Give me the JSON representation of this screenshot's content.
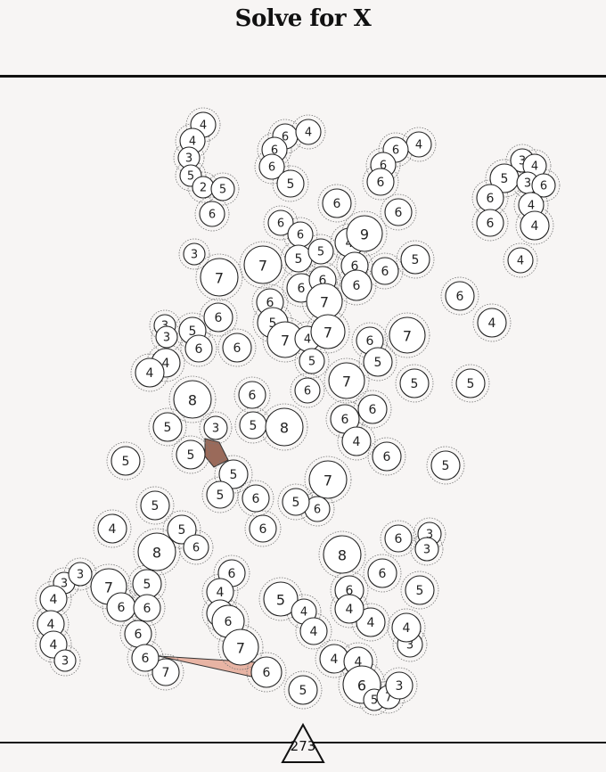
{
  "game": {
    "title": "Solve for X",
    "score": "273"
  },
  "colors": {
    "background": "#f7f5f4",
    "node_fill": "#ffffff",
    "node_stroke": "#222222",
    "halo_stroke": "#777777",
    "edge_fill_pink": "#e8b4a4",
    "edge_fill_brown": "#9a6a5a"
  },
  "nodes": [
    {
      "n": 4
    },
    {
      "n": 4
    },
    {
      "n": 3
    },
    {
      "n": 5
    },
    {
      "n": 2
    },
    {
      "n": 5
    },
    {
      "n": 6
    },
    {
      "n": 6
    },
    {
      "n": 4
    },
    {
      "n": 6
    },
    {
      "n": 6
    },
    {
      "n": 5
    },
    {
      "n": 6
    },
    {
      "n": 6
    },
    {
      "n": 6
    },
    {
      "n": 4
    },
    {
      "n": 6
    },
    {
      "n": 6
    },
    {
      "n": 6
    },
    {
      "n": 6
    },
    {
      "n": 3
    },
    {
      "n": 4
    },
    {
      "n": 5
    },
    {
      "n": 3
    },
    {
      "n": 6
    },
    {
      "n": 6
    },
    {
      "n": 4
    },
    {
      "n": 4
    },
    {
      "n": 6
    },
    {
      "n": 4
    },
    {
      "n": 3
    },
    {
      "n": 7
    },
    {
      "n": 7
    },
    {
      "n": 5
    },
    {
      "n": 5
    },
    {
      "n": 4
    },
    {
      "n": 9
    },
    {
      "n": 6
    },
    {
      "n": 6
    },
    {
      "n": 5
    },
    {
      "n": 6
    },
    {
      "n": 6
    },
    {
      "n": 6
    },
    {
      "n": 6
    },
    {
      "n": 7
    },
    {
      "n": 5
    },
    {
      "n": 7
    },
    {
      "n": 4
    },
    {
      "n": 7
    },
    {
      "n": 5
    },
    {
      "n": 6
    },
    {
      "n": 7
    },
    {
      "n": 6
    },
    {
      "n": 5
    },
    {
      "n": 6
    },
    {
      "n": 4
    },
    {
      "n": 3
    },
    {
      "n": 3
    },
    {
      "n": 5
    },
    {
      "n": 6
    },
    {
      "n": 6
    },
    {
      "n": 4
    },
    {
      "n": 4
    },
    {
      "n": 8
    },
    {
      "n": 6
    },
    {
      "n": 5
    },
    {
      "n": 5
    },
    {
      "n": 3
    },
    {
      "n": 5
    },
    {
      "n": 6
    },
    {
      "n": 8
    },
    {
      "n": 7
    },
    {
      "n": 6
    },
    {
      "n": 6
    },
    {
      "n": 4
    },
    {
      "n": 6
    },
    {
      "n": 5
    },
    {
      "n": 5
    },
    {
      "n": 5
    },
    {
      "n": 5
    },
    {
      "n": 7
    },
    {
      "n": 5
    },
    {
      "n": 6
    },
    {
      "n": 6
    },
    {
      "n": 4
    },
    {
      "n": 5
    },
    {
      "n": 5
    },
    {
      "n": 8
    },
    {
      "n": 6
    },
    {
      "n": 6
    },
    {
      "n": 6
    },
    {
      "n": 3
    },
    {
      "n": 3
    },
    {
      "n": 8
    },
    {
      "n": 6
    },
    {
      "n": 5
    },
    {
      "n": 5
    },
    {
      "n": 6
    },
    {
      "n": 6
    },
    {
      "n": 5
    },
    {
      "n": 3
    },
    {
      "n": 3
    },
    {
      "n": 7
    },
    {
      "n": 5
    },
    {
      "n": 4
    },
    {
      "n": 4
    },
    {
      "n": 4
    },
    {
      "n": 3
    },
    {
      "n": 6
    },
    {
      "n": 6
    },
    {
      "n": 4
    },
    {
      "n": 4
    },
    {
      "n": 6
    },
    {
      "n": 5
    },
    {
      "n": 7
    },
    {
      "n": 7
    },
    {
      "n": 4
    },
    {
      "n": 4
    },
    {
      "n": 6
    },
    {
      "n": 6
    },
    {
      "n": 4
    },
    {
      "n": 4
    },
    {
      "n": 6
    },
    {
      "n": 5
    },
    {
      "n": 7
    },
    {
      "n": 3
    },
    {
      "n": 3
    },
    {
      "n": 4
    },
    {
      "n": 4
    },
    {
      "n": 5
    },
    {
      "n": 6
    },
    {
      "n": 4
    },
    {
      "n": 5
    },
    {
      "n": 5
    }
  ]
}
